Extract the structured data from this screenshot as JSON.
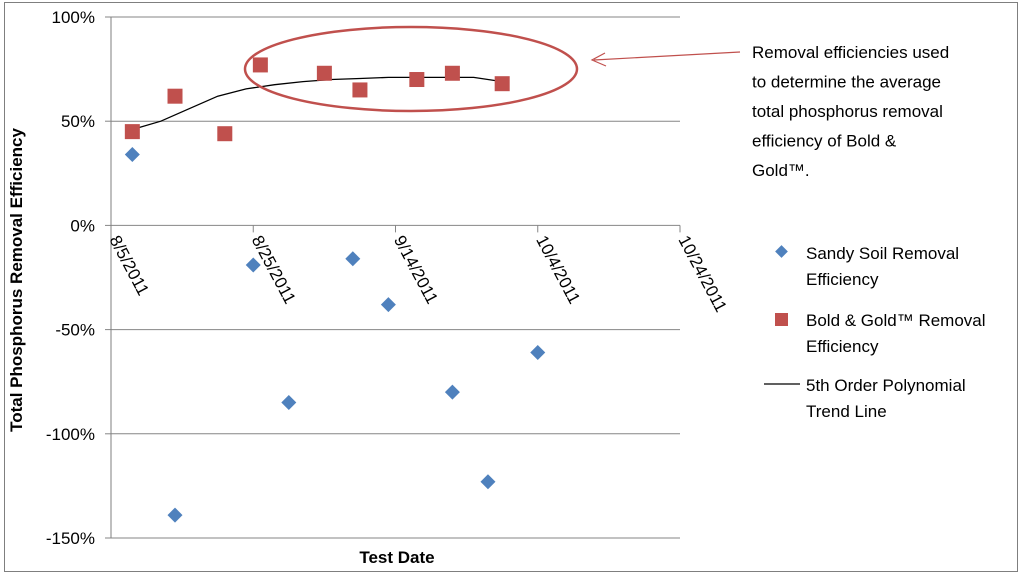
{
  "chart_data": {
    "type": "scatter",
    "title": "",
    "xlabel": "Test Date",
    "ylabel": "Total Phosphorus Removal Efficiency",
    "x_axis": {
      "type": "date",
      "min": "2011-08-05",
      "max": "2011-10-24",
      "tick_dates": [
        "2011-08-05",
        "2011-08-25",
        "2011-09-14",
        "2011-10-04",
        "2011-10-24"
      ],
      "tick_labels": [
        "8/5/2011",
        "8/25/2011",
        "9/14/2011",
        "10/4/2011",
        "10/24/2011"
      ]
    },
    "y_axis": {
      "min": -150,
      "max": 100,
      "tick_values": [
        100,
        50,
        0,
        -50,
        -100,
        -150
      ],
      "tick_labels": [
        "100%",
        "50%",
        "0%",
        "-50%",
        "-100%",
        "-150%"
      ]
    },
    "grid": true,
    "legend_position": "right",
    "series": [
      {
        "name": "Sandy Soil Removal Efficiency",
        "marker": "diamond",
        "color": "#4f81bd",
        "points": [
          {
            "x": "2011-08-08",
            "y": 34
          },
          {
            "x": "2011-08-14",
            "y": -139
          },
          {
            "x": "2011-08-25",
            "y": -19
          },
          {
            "x": "2011-08-30",
            "y": -85
          },
          {
            "x": "2011-09-08",
            "y": -16
          },
          {
            "x": "2011-09-13",
            "y": -38
          },
          {
            "x": "2011-09-22",
            "y": -80
          },
          {
            "x": "2011-09-27",
            "y": -123
          },
          {
            "x": "2011-10-04",
            "y": -61
          }
        ]
      },
      {
        "name": "Bold & Gold™ Removal Efficiency",
        "marker": "square",
        "color": "#c0504d",
        "points": [
          {
            "x": "2011-08-08",
            "y": 45
          },
          {
            "x": "2011-08-14",
            "y": 62
          },
          {
            "x": "2011-08-21",
            "y": 44
          },
          {
            "x": "2011-08-26",
            "y": 77
          },
          {
            "x": "2011-09-04",
            "y": 73
          },
          {
            "x": "2011-09-09",
            "y": 65
          },
          {
            "x": "2011-09-17",
            "y": 70
          },
          {
            "x": "2011-09-22",
            "y": 73
          },
          {
            "x": "2011-09-29",
            "y": 68
          }
        ]
      },
      {
        "name": "5th Order Polynomial Trend Line",
        "marker": "line",
        "color": "#000000",
        "points": [
          {
            "x": "2011-08-08",
            "y": 46
          },
          {
            "x": "2011-08-12",
            "y": 50
          },
          {
            "x": "2011-08-16",
            "y": 56
          },
          {
            "x": "2011-08-20",
            "y": 62
          },
          {
            "x": "2011-08-24",
            "y": 65.5
          },
          {
            "x": "2011-08-28",
            "y": 67.5
          },
          {
            "x": "2011-09-01",
            "y": 69
          },
          {
            "x": "2011-09-05",
            "y": 70
          },
          {
            "x": "2011-09-09",
            "y": 70.5
          },
          {
            "x": "2011-09-13",
            "y": 71
          },
          {
            "x": "2011-09-17",
            "y": 71
          },
          {
            "x": "2011-09-21",
            "y": 71
          },
          {
            "x": "2011-09-25",
            "y": 71
          },
          {
            "x": "2011-09-29",
            "y": 69
          }
        ]
      }
    ],
    "annotations": [
      {
        "text_lines": [
          "Removal efficiencies used",
          "to determine  the average",
          "total phosphorus  removal",
          "efficiency of Bold &",
          "Gold™."
        ],
        "ellipse_color": "#c0504d",
        "arrow_color": "#c0504d"
      }
    ]
  }
}
